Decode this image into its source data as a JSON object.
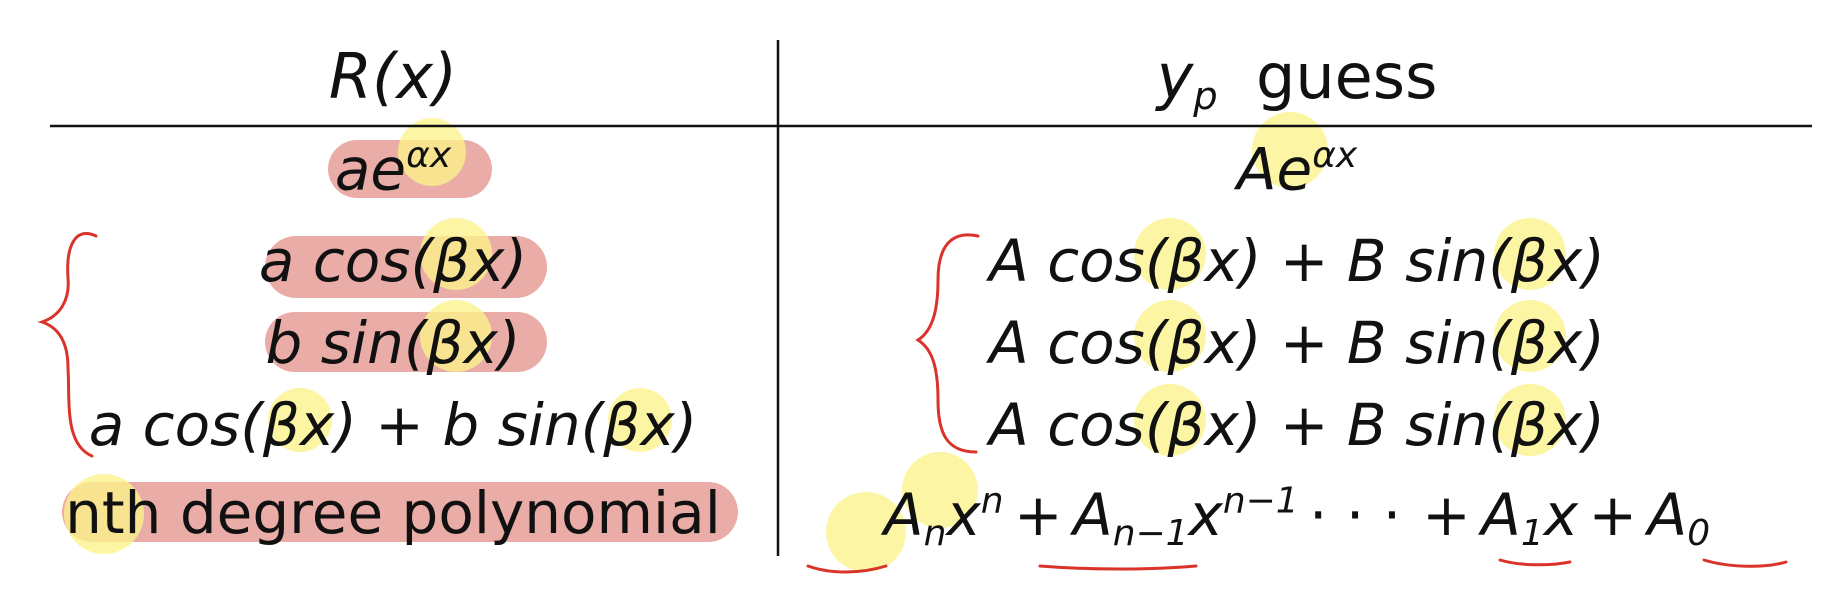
{
  "table": {
    "header_left": "R(x)",
    "header_right_var": "y",
    "header_right_sub": "p",
    "header_right_word": "guess",
    "rows": [
      {
        "left": {
          "coef": "ae",
          "exp": "αx"
        },
        "right": {
          "coef": "Ae",
          "exp": "αx"
        }
      },
      {
        "left": {
          "text": "a cos(βx)"
        },
        "right": {
          "text": "A cos(βx) + B sin(βx)"
        }
      },
      {
        "left": {
          "text": "b sin(βx)"
        },
        "right": {
          "text": "A cos(βx) + B sin(βx)"
        }
      },
      {
        "left": {
          "text": "a cos(βx) + b sin(βx)"
        },
        "right": {
          "text": "A cos(βx) + B sin(βx)"
        }
      },
      {
        "left": {
          "text": "nth degree polynomial"
        },
        "right": {
          "t1_base": "A",
          "t1_sub": "n",
          "t1_x": "x",
          "t1_sup": "n",
          "plus": "+",
          "t2_base": "A",
          "t2_sub": "n−1",
          "t2_x": "x",
          "t2_sup": "n−1",
          "dots": "· · ·",
          "t3_base": "A",
          "t3_sub": "1",
          "t3_x": "x",
          "t4_base": "A",
          "t4_sub": "0"
        }
      }
    ]
  },
  "annotation_colors": {
    "red_highlight": "#e8a39c",
    "yellow_highlight": "#fbf48a",
    "red_ink": "#d9332a"
  }
}
